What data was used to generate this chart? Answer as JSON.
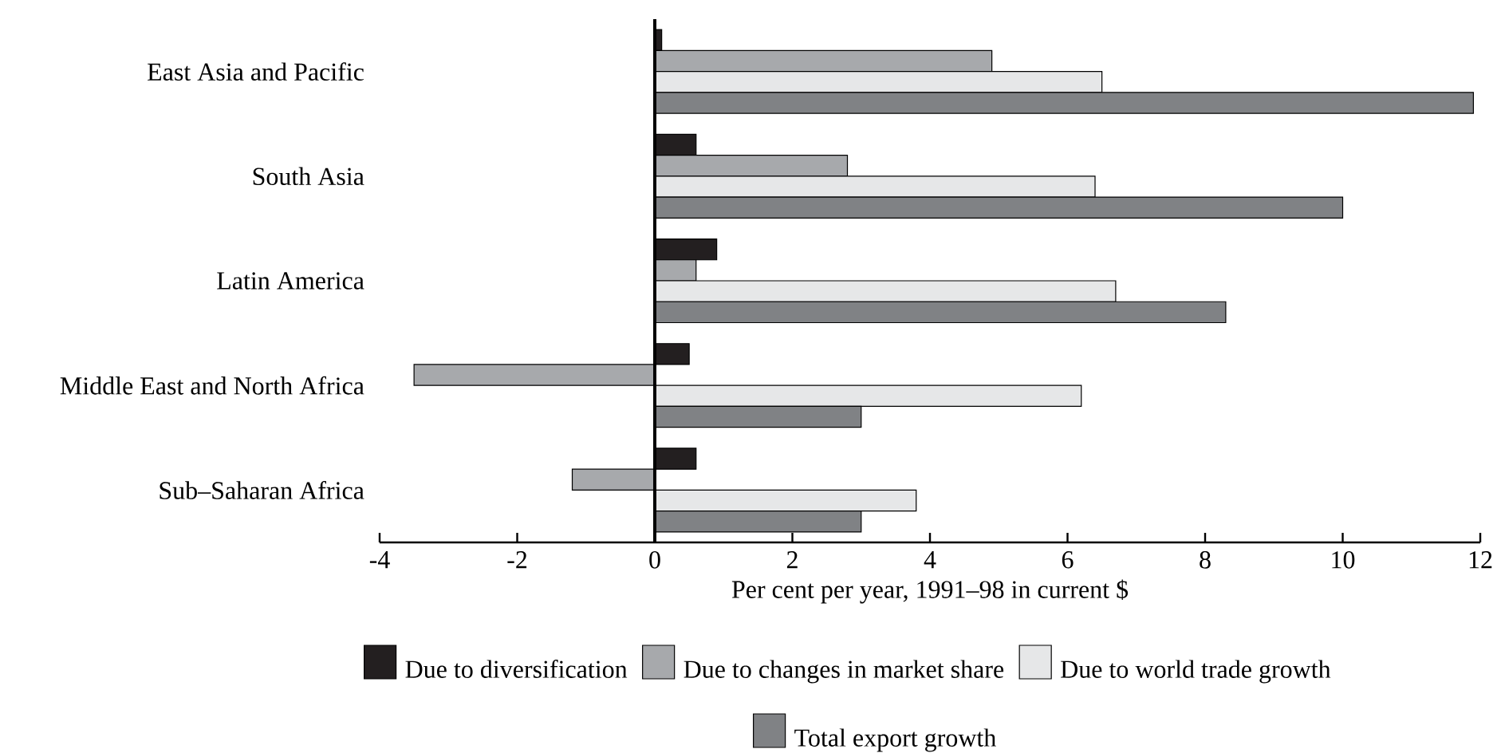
{
  "chart_data": {
    "type": "bar",
    "orientation": "horizontal",
    "xlabel": "Per cent per year, 1991–98 in current $",
    "categories": [
      "East Asia and Pacific",
      "South Asia",
      "Latin America",
      "Middle East and North Africa",
      "Sub–Saharan Africa"
    ],
    "series": [
      {
        "name": "Due to diversification",
        "color": "#231f20",
        "values": [
          0.1,
          0.6,
          0.9,
          0.5,
          0.6
        ]
      },
      {
        "name": "Due to changes in market share",
        "color": "#a7a9ac",
        "values": [
          4.9,
          2.8,
          0.6,
          -3.5,
          -1.2
        ]
      },
      {
        "name": "Due to world trade growth",
        "color": "#e6e7e8",
        "values": [
          6.5,
          6.4,
          6.7,
          6.2,
          3.8
        ]
      },
      {
        "name": "Total export growth",
        "color": "#808285",
        "values": [
          11.9,
          10.0,
          8.3,
          3.0,
          3.0
        ]
      }
    ],
    "xlim": [
      -4,
      12
    ],
    "xticks": [
      -4,
      -2,
      0,
      2,
      4,
      6,
      8,
      10,
      12
    ],
    "legend": "bottom"
  }
}
